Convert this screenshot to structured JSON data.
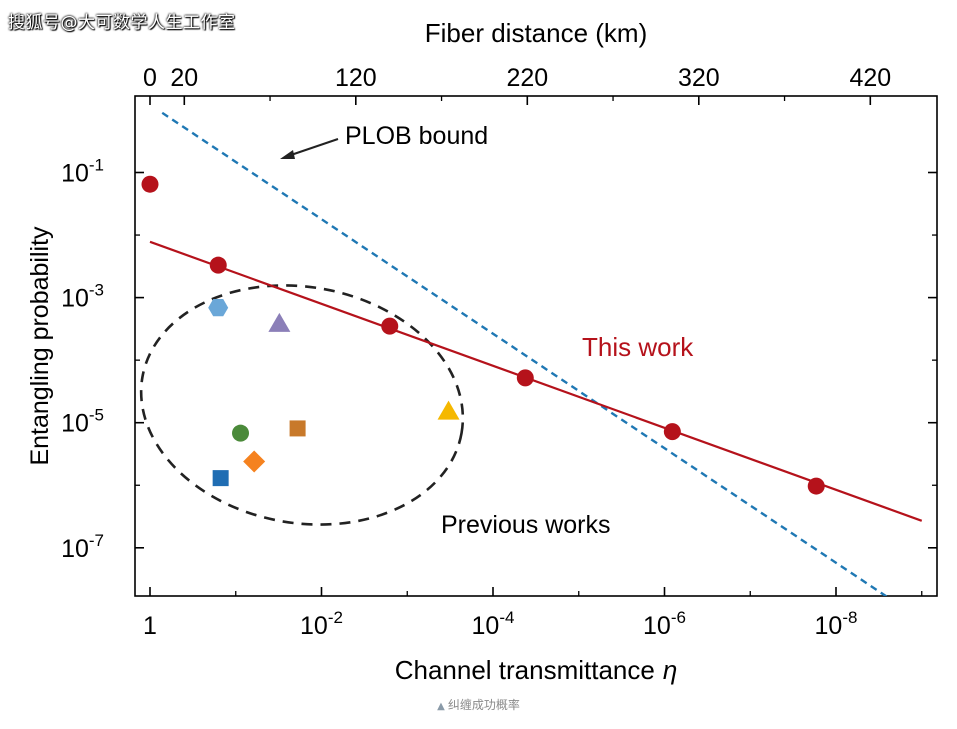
{
  "watermark": "搜狐号@大可数学人生工作室",
  "caption": "纠缠成功概率",
  "chart_data": {
    "type": "scatter",
    "xlabel": "Channel transmittance",
    "xlabel_symbol": "η",
    "ylabel": "Entangling probability",
    "top_axis_label": "Fiber distance (km)",
    "x_scale": "log",
    "y_scale": "log",
    "xlim": [
      1.4,
      1e-09
    ],
    "ylim": [
      1e-08,
      1
    ],
    "x_ticks": [
      {
        "value": 1,
        "base": "1",
        "exp": ""
      },
      {
        "value": 0.01,
        "base": "10",
        "exp": "-2"
      },
      {
        "value": 0.0001,
        "base": "10",
        "exp": "-4"
      },
      {
        "value": 1e-06,
        "base": "10",
        "exp": "-6"
      },
      {
        "value": 1e-08,
        "base": "10",
        "exp": "-8"
      }
    ],
    "y_ticks": [
      {
        "value": 0.1,
        "base": "10",
        "exp": "-1"
      },
      {
        "value": 0.001,
        "base": "10",
        "exp": "-3"
      },
      {
        "value": 1e-05,
        "base": "10",
        "exp": "-5"
      },
      {
        "value": 1e-07,
        "base": "10",
        "exp": "-7"
      }
    ],
    "top_ticks": [
      {
        "km": 0,
        "label": "0"
      },
      {
        "km": 20,
        "label": "20"
      },
      {
        "km": 120,
        "label": "120"
      },
      {
        "km": 220,
        "label": "220"
      },
      {
        "km": 320,
        "label": "320"
      },
      {
        "km": 420,
        "label": "420"
      }
    ],
    "series": [
      {
        "name": "This work",
        "color": "#b5121b",
        "marker": "circle",
        "points": [
          {
            "x": 1.0,
            "y": 0.065
          },
          {
            "x": 0.16,
            "y": 0.0033
          },
          {
            "x": 0.0016,
            "y": 0.00035
          },
          {
            "x": 4.2e-05,
            "y": 5.2e-05
          },
          {
            "x": 8.1e-07,
            "y": 7.2e-06
          },
          {
            "x": 1.7e-08,
            "y": 9.7e-07
          }
        ],
        "fit": [
          [
            1.0,
            0.0078
          ],
          [
            1e-09,
            2.7e-07
          ]
        ]
      },
      {
        "name": "PLOB bound",
        "color": "#1f78b4",
        "style": "dashed",
        "line": [
          [
            0.72,
            0.9
          ],
          [
            1.8e-09,
            1.2e-08
          ]
        ]
      }
    ],
    "previous_works": [
      {
        "x": 0.16,
        "y": 0.00069,
        "marker": "hexagon",
        "color": "#6aa7d8"
      },
      {
        "x": 0.031,
        "y": 0.00038,
        "marker": "triangle",
        "color": "#8b7fb8"
      },
      {
        "x": 0.088,
        "y": 6.8e-06,
        "marker": "circle",
        "color": "#4b8a3a"
      },
      {
        "x": 0.019,
        "y": 8.1e-06,
        "marker": "square",
        "color": "#c8792a"
      },
      {
        "x": 0.061,
        "y": 2.4e-06,
        "marker": "diamond",
        "color": "#f5821f"
      },
      {
        "x": 0.15,
        "y": 1.3e-06,
        "marker": "square",
        "color": "#1f6db3"
      },
      {
        "x": 0.00033,
        "y": 1.5e-05,
        "marker": "triangle",
        "color": "#f5b800"
      }
    ],
    "annotations": {
      "plob_label": "PLOB bound",
      "this_work_label": "This work",
      "previous_label": "Previous works"
    },
    "grid": false
  }
}
